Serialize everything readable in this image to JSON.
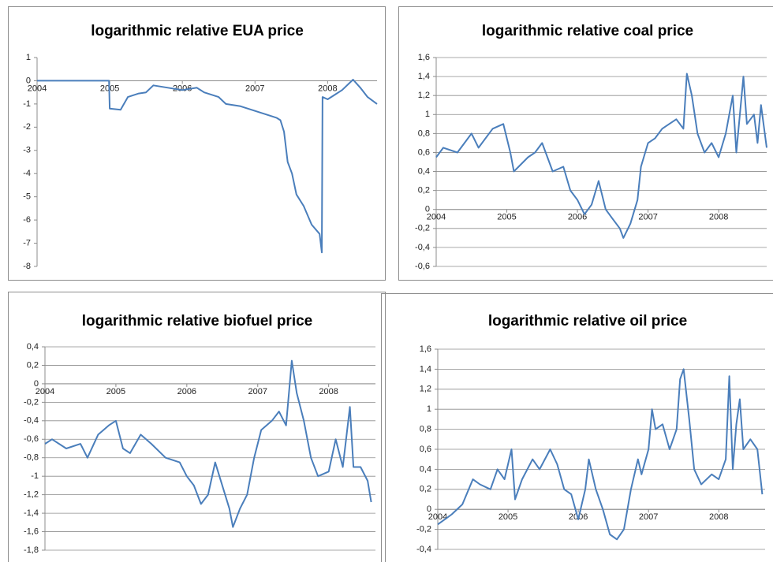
{
  "chart_data": [
    {
      "type": "line",
      "title": "logarithmic relative EUA price",
      "color": "#4a7ebb",
      "grid": false,
      "xlim": [
        2004,
        2008.68
      ],
      "xticks": [
        2004,
        2005,
        2006,
        2007,
        2008
      ],
      "ylim": [
        -8,
        1
      ],
      "yticks": [
        1,
        0,
        -1,
        -2,
        -3,
        -4,
        -5,
        -6,
        -7,
        -8
      ],
      "x": [
        2004,
        2004.5,
        2004.99,
        2005.0,
        2005.15,
        2005.25,
        2005.4,
        2005.5,
        2005.6,
        2005.8,
        2006.0,
        2006.2,
        2006.3,
        2006.5,
        2006.6,
        2006.8,
        2007.0,
        2007.2,
        2007.3,
        2007.35,
        2007.4,
        2007.45,
        2007.51,
        2007.57,
        2007.67,
        2007.78,
        2007.89,
        2007.92,
        2007.93,
        2008.0,
        2008.1,
        2008.2,
        2008.35,
        2008.45,
        2008.55,
        2008.68
      ],
      "values": [
        0,
        0,
        0,
        -1.2,
        -1.25,
        -0.7,
        -0.55,
        -0.5,
        -0.2,
        -0.3,
        -0.4,
        -0.3,
        -0.5,
        -0.7,
        -1.0,
        -1.1,
        -1.3,
        -1.5,
        -1.6,
        -1.7,
        -2.2,
        -3.5,
        -4.0,
        -4.9,
        -5.4,
        -6.2,
        -6.6,
        -7.4,
        -0.7,
        -0.8,
        -0.6,
        -0.4,
        0.05,
        -0.3,
        -0.7,
        -1.0
      ]
    },
    {
      "type": "line",
      "title": "logarithmic relative coal price",
      "color": "#4a7ebb",
      "grid": true,
      "xlim": [
        2004,
        2008.68
      ],
      "xticks": [
        2004,
        2005,
        2006,
        2007,
        2008
      ],
      "ylim": [
        -0.6,
        1.6
      ],
      "yticks": [
        {
          "value": 1.6,
          "label": "1,6"
        },
        {
          "value": 1.4,
          "label": "1,4"
        },
        {
          "value": 1.2,
          "label": "1,2"
        },
        1,
        {
          "value": 0.8,
          "label": "0,8"
        },
        {
          "value": 0.6,
          "label": "0,6"
        },
        {
          "value": 0.4,
          "label": "0,4"
        },
        {
          "value": 0.2,
          "label": "0,2"
        },
        0,
        {
          "value": -0.2,
          "label": "-0,2"
        },
        {
          "value": -0.4,
          "label": "-0,4"
        },
        {
          "value": -0.6,
          "label": "-0,6"
        }
      ],
      "x": [
        2004,
        2004.1,
        2004.3,
        2004.5,
        2004.6,
        2004.8,
        2004.95,
        2005.05,
        2005.1,
        2005.3,
        2005.4,
        2005.5,
        2005.65,
        2005.8,
        2005.9,
        2006,
        2006.1,
        2006.2,
        2006.3,
        2006.4,
        2006.5,
        2006.6,
        2006.65,
        2006.75,
        2006.85,
        2006.9,
        2007,
        2007.1,
        2007.2,
        2007.3,
        2007.4,
        2007.5,
        2007.55,
        2007.62,
        2007.7,
        2007.8,
        2007.9,
        2008,
        2008.1,
        2008.2,
        2008.25,
        2008.35,
        2008.4,
        2008.5,
        2008.55,
        2008.6,
        2008.68
      ],
      "values": [
        0.55,
        0.65,
        0.6,
        0.8,
        0.65,
        0.85,
        0.9,
        0.6,
        0.4,
        0.55,
        0.6,
        0.7,
        0.4,
        0.45,
        0.2,
        0.1,
        -0.05,
        0.05,
        0.3,
        0.0,
        -0.1,
        -0.2,
        -0.3,
        -0.15,
        0.1,
        0.45,
        0.7,
        0.75,
        0.85,
        0.9,
        0.95,
        0.85,
        1.43,
        1.2,
        0.8,
        0.6,
        0.7,
        0.55,
        0.8,
        1.2,
        0.6,
        1.4,
        0.9,
        1.0,
        0.7,
        1.1,
        0.65
      ]
    },
    {
      "type": "line",
      "title": "logarithmic relative biofuel price",
      "color": "#4a7ebb",
      "grid": true,
      "xlim": [
        2004,
        2008.66
      ],
      "xticks": [
        2004,
        2005,
        2006,
        2007,
        2008
      ],
      "ylim": [
        -1.8,
        0.4
      ],
      "yticks": [
        {
          "value": 0.4,
          "label": "0,4"
        },
        {
          "value": 0.2,
          "label": "0,2"
        },
        0,
        {
          "value": -0.2,
          "label": "-0,2"
        },
        {
          "value": -0.4,
          "label": "-0,4"
        },
        {
          "value": -0.6,
          "label": "-0,6"
        },
        {
          "value": -0.8,
          "label": "-0,8"
        },
        -1,
        {
          "value": -1.2,
          "label": "-1,2"
        },
        {
          "value": -1.4,
          "label": "-1,4"
        },
        {
          "value": -1.6,
          "label": "-1,6"
        },
        {
          "value": -1.8,
          "label": "-1,8"
        }
      ],
      "x": [
        2004,
        2004.1,
        2004.3,
        2004.5,
        2004.6,
        2004.75,
        2004.9,
        2005,
        2005.1,
        2005.2,
        2005.35,
        2005.5,
        2005.7,
        2005.9,
        2006,
        2006.1,
        2006.2,
        2006.3,
        2006.4,
        2006.5,
        2006.6,
        2006.65,
        2006.75,
        2006.85,
        2006.95,
        2007.05,
        2007.2,
        2007.3,
        2007.4,
        2007.48,
        2007.55,
        2007.65,
        2007.75,
        2007.85,
        2008,
        2008.1,
        2008.2,
        2008.3,
        2008.35,
        2008.45,
        2008.55,
        2008.6
      ],
      "values": [
        -0.65,
        -0.6,
        -0.7,
        -0.65,
        -0.8,
        -0.55,
        -0.45,
        -0.4,
        -0.7,
        -0.75,
        -0.55,
        -0.65,
        -0.8,
        -0.85,
        -1.0,
        -1.1,
        -1.3,
        -1.2,
        -0.85,
        -1.1,
        -1.35,
        -1.55,
        -1.35,
        -1.2,
        -0.8,
        -0.5,
        -0.4,
        -0.3,
        -0.45,
        0.25,
        -0.1,
        -0.4,
        -0.8,
        -1.0,
        -0.95,
        -0.6,
        -0.9,
        -0.25,
        -0.9,
        -0.9,
        -1.05,
        -1.28
      ]
    },
    {
      "type": "line",
      "title": "logarithmic relative oil price",
      "color": "#4a7ebb",
      "grid": true,
      "xlim": [
        2004,
        2008.66
      ],
      "xticks": [
        2004,
        2005,
        2006,
        2007,
        2008
      ],
      "ylim": [
        -0.4,
        1.6
      ],
      "yticks": [
        {
          "value": 1.6,
          "label": "1,6"
        },
        {
          "value": 1.4,
          "label": "1,4"
        },
        {
          "value": 1.2,
          "label": "1,2"
        },
        1,
        {
          "value": 0.8,
          "label": "0,8"
        },
        {
          "value": 0.6,
          "label": "0,6"
        },
        {
          "value": 0.4,
          "label": "0,4"
        },
        {
          "value": 0.2,
          "label": "0,2"
        },
        0,
        {
          "value": -0.2,
          "label": "-0,2"
        },
        {
          "value": -0.4,
          "label": "-0,4"
        }
      ],
      "x": [
        2004,
        2004.1,
        2004.2,
        2004.35,
        2004.5,
        2004.6,
        2004.75,
        2004.85,
        2004.95,
        2005.05,
        2005.1,
        2005.2,
        2005.35,
        2005.45,
        2005.6,
        2005.7,
        2005.8,
        2005.9,
        2006,
        2006.1,
        2006.15,
        2006.25,
        2006.35,
        2006.45,
        2006.55,
        2006.65,
        2006.75,
        2006.85,
        2006.9,
        2007,
        2007.05,
        2007.1,
        2007.2,
        2007.3,
        2007.4,
        2007.45,
        2007.5,
        2007.58,
        2007.65,
        2007.75,
        2007.9,
        2008,
        2008.1,
        2008.15,
        2008.2,
        2008.25,
        2008.3,
        2008.35,
        2008.45,
        2008.55,
        2008.62
      ],
      "values": [
        -0.15,
        -0.1,
        -0.05,
        0.05,
        0.3,
        0.25,
        0.2,
        0.4,
        0.3,
        0.6,
        0.1,
        0.3,
        0.5,
        0.4,
        0.6,
        0.45,
        0.2,
        0.15,
        -0.1,
        0.2,
        0.5,
        0.2,
        0.0,
        -0.25,
        -0.3,
        -0.2,
        0.2,
        0.5,
        0.35,
        0.6,
        1.0,
        0.8,
        0.85,
        0.6,
        0.8,
        1.3,
        1.4,
        0.9,
        0.4,
        0.25,
        0.35,
        0.3,
        0.5,
        1.33,
        0.4,
        0.85,
        1.1,
        0.6,
        0.7,
        0.6,
        0.15
      ]
    }
  ]
}
